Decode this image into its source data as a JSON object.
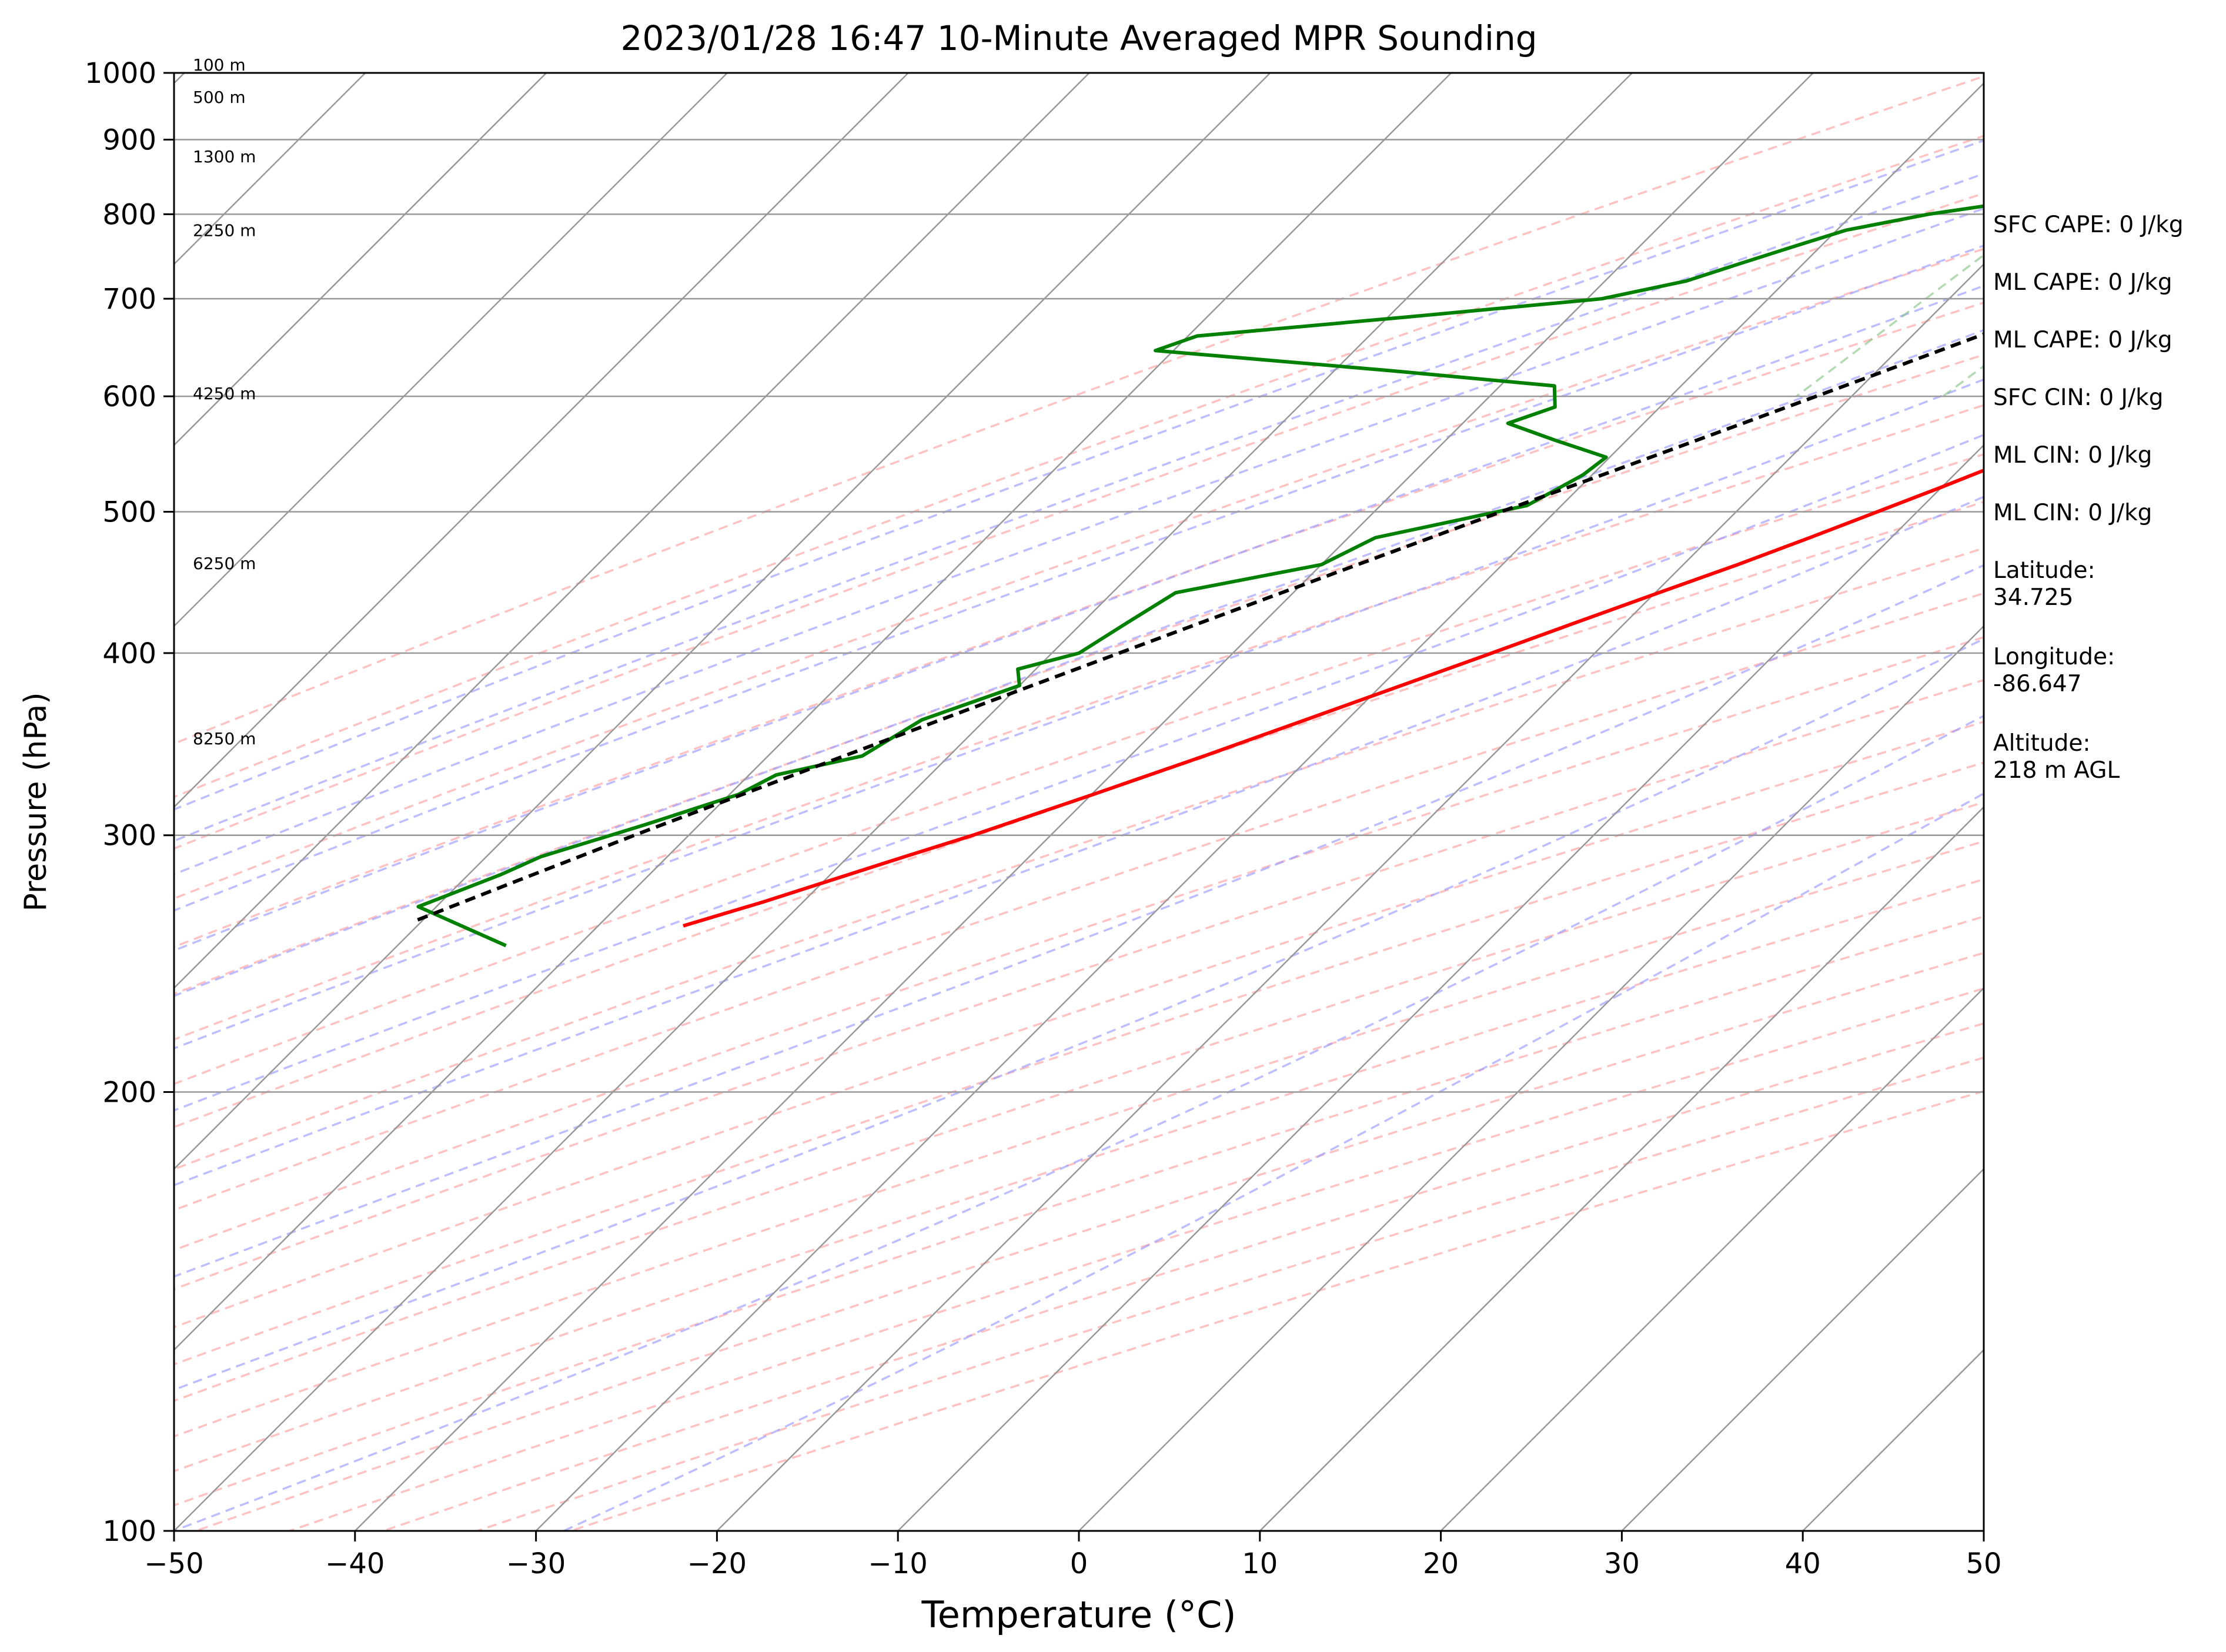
{
  "chart_data": {
    "type": "line",
    "title": "2023/01/28 16:47 10-Minute Averaged MPR Sounding",
    "xlabel": "Temperature (°C)",
    "ylabel": "Pressure (hPa)",
    "xlim": [
      -50,
      50
    ],
    "ylim": [
      1000,
      100
    ],
    "y_scale": "log",
    "skew": "skew-T (45°)",
    "x_ticks": [
      -50,
      -40,
      -30,
      -20,
      -10,
      0,
      10,
      20,
      30,
      40,
      50
    ],
    "x_tick_labels": [
      "−50",
      "−40",
      "−30",
      "−20",
      "−10",
      "0",
      "10",
      "20",
      "30",
      "40",
      "50"
    ],
    "y_ticks": [
      1000,
      900,
      800,
      700,
      600,
      500,
      400,
      300,
      200,
      100
    ],
    "y_tick_labels": [
      "1000",
      "900",
      "800",
      "700",
      "600",
      "500",
      "400",
      "300",
      "200",
      "100"
    ],
    "height_labels": [
      {
        "text": "100 m",
        "p": 1000
      },
      {
        "text": "500 m",
        "p": 950
      },
      {
        "text": "1300 m",
        "p": 865
      },
      {
        "text": "2250 m",
        "p": 770
      },
      {
        "text": "4250 m",
        "p": 595
      },
      {
        "text": "6250 m",
        "p": 455
      },
      {
        "text": "8250 m",
        "p": 345
      }
    ],
    "series": [
      {
        "role": "temperature",
        "color": "#ff0000",
        "points": [
          [
            1000,
            10.8
          ],
          [
            990,
            10.5
          ],
          [
            975,
            9.2
          ],
          [
            950,
            6.5
          ],
          [
            935,
            5.2
          ],
          [
            920,
            4.6
          ],
          [
            900,
            4.2
          ],
          [
            880,
            3.9
          ],
          [
            860,
            4.0
          ],
          [
            840,
            4.1
          ],
          [
            820,
            4.1
          ],
          [
            800,
            4.2
          ],
          [
            780,
            4.0
          ],
          [
            760,
            3.7
          ],
          [
            740,
            3.4
          ],
          [
            720,
            3.0
          ],
          [
            700,
            2.6
          ],
          [
            680,
            1.9
          ],
          [
            660,
            1.0
          ],
          [
            640,
            -0.2
          ],
          [
            620,
            -1.5
          ],
          [
            600,
            -3.0
          ],
          [
            580,
            -4.5
          ],
          [
            560,
            -6.2
          ],
          [
            540,
            -8.0
          ],
          [
            520,
            -10.0
          ],
          [
            500,
            -12.2
          ],
          [
            480,
            -14.5
          ],
          [
            460,
            -17.0
          ],
          [
            440,
            -19.8
          ],
          [
            420,
            -22.7
          ],
          [
            400,
            -25.7
          ],
          [
            380,
            -28.9
          ],
          [
            360,
            -32.3
          ],
          [
            340,
            -35.9
          ],
          [
            320,
            -39.9
          ],
          [
            300,
            -44.3
          ],
          [
            290,
            -46.9
          ],
          [
            280,
            -49.5
          ],
          [
            270,
            -52.2
          ],
          [
            260,
            -55.3
          ]
        ]
      },
      {
        "role": "dewpoint",
        "color": "#008000",
        "points": [
          [
            1000,
            -3.9
          ],
          [
            990,
            -4.6
          ],
          [
            975,
            -4.8
          ],
          [
            960,
            -5.0
          ],
          [
            940,
            -5.8
          ],
          [
            925,
            -6.2
          ],
          [
            905,
            -7.2
          ],
          [
            875,
            -12.2
          ],
          [
            860,
            -15.5
          ],
          [
            845,
            -17.0
          ],
          [
            830,
            -19.0
          ],
          [
            815,
            -22.0
          ],
          [
            800,
            -25.8
          ],
          [
            780,
            -29.5
          ],
          [
            760,
            -31.5
          ],
          [
            740,
            -33.5
          ],
          [
            720,
            -35.5
          ],
          [
            700,
            -39.2
          ],
          [
            680,
            -49.0
          ],
          [
            660,
            -59.5
          ],
          [
            645,
            -61.0
          ],
          [
            625,
            -47.0
          ],
          [
            610,
            -37.0
          ],
          [
            590,
            -35.8
          ],
          [
            575,
            -37.5
          ],
          [
            560,
            -34.0
          ],
          [
            545,
            -30.2
          ],
          [
            530,
            -30.5
          ],
          [
            505,
            -31.9
          ],
          [
            480,
            -38.5
          ],
          [
            460,
            -40.0
          ],
          [
            440,
            -46.5
          ],
          [
            420,
            -47.5
          ],
          [
            400,
            -48.5
          ],
          [
            390,
            -51.0
          ],
          [
            380,
            -50.0
          ],
          [
            360,
            -53.5
          ],
          [
            340,
            -54.8
          ],
          [
            330,
            -58.5
          ],
          [
            320,
            -59.5
          ],
          [
            305,
            -63.0
          ],
          [
            290,
            -67.0
          ],
          [
            282,
            -68.2
          ],
          [
            268,
            -71.0
          ],
          [
            252,
            -64.0
          ]
        ]
      },
      {
        "role": "parcel",
        "color": "#000000",
        "style": "dashed",
        "points": [
          [
            1000,
            11.8
          ],
          [
            975,
            9.7
          ],
          [
            950,
            7.5
          ],
          [
            925,
            5.3
          ],
          [
            900,
            3.0
          ],
          [
            875,
            0.7
          ],
          [
            850,
            -1.6
          ],
          [
            830,
            -3.5
          ],
          [
            810,
            -5.2
          ],
          [
            790,
            -6.3
          ],
          [
            760,
            -8.2
          ],
          [
            730,
            -10.4
          ],
          [
            700,
            -12.8
          ],
          [
            660,
            -16.3
          ],
          [
            620,
            -20.0
          ],
          [
            580,
            -24.0
          ],
          [
            540,
            -28.3
          ],
          [
            500,
            -33.0
          ],
          [
            460,
            -38.0
          ],
          [
            420,
            -43.4
          ],
          [
            380,
            -49.3
          ],
          [
            340,
            -55.8
          ],
          [
            300,
            -63.0
          ],
          [
            280,
            -66.8
          ],
          [
            262,
            -70.4
          ]
        ]
      }
    ]
  },
  "info_panel": {
    "sfc_cape": "SFC CAPE: 0 J/kg",
    "ml_cape_1": "ML CAPE: 0 J/kg",
    "ml_cape_2": "ML CAPE: 0 J/kg",
    "sfc_cin": "SFC CIN: 0 J/kg",
    "ml_cin_1": "ML CIN: 0 J/kg",
    "ml_cin_2": "ML CIN: 0 J/kg",
    "latitude": "Latitude:\n34.725",
    "longitude": "Longitude:\n-86.647",
    "altitude": "Altitude:\n218 m AGL"
  },
  "colors": {
    "temperature": "#ff0000",
    "dewpoint": "#008000",
    "parcel": "#000000",
    "dry_adiabats": "#ff9999",
    "moist_adiabats": "#9999ff",
    "mixing_ratio": "#7fbf7f",
    "isotherms": "#999999"
  }
}
